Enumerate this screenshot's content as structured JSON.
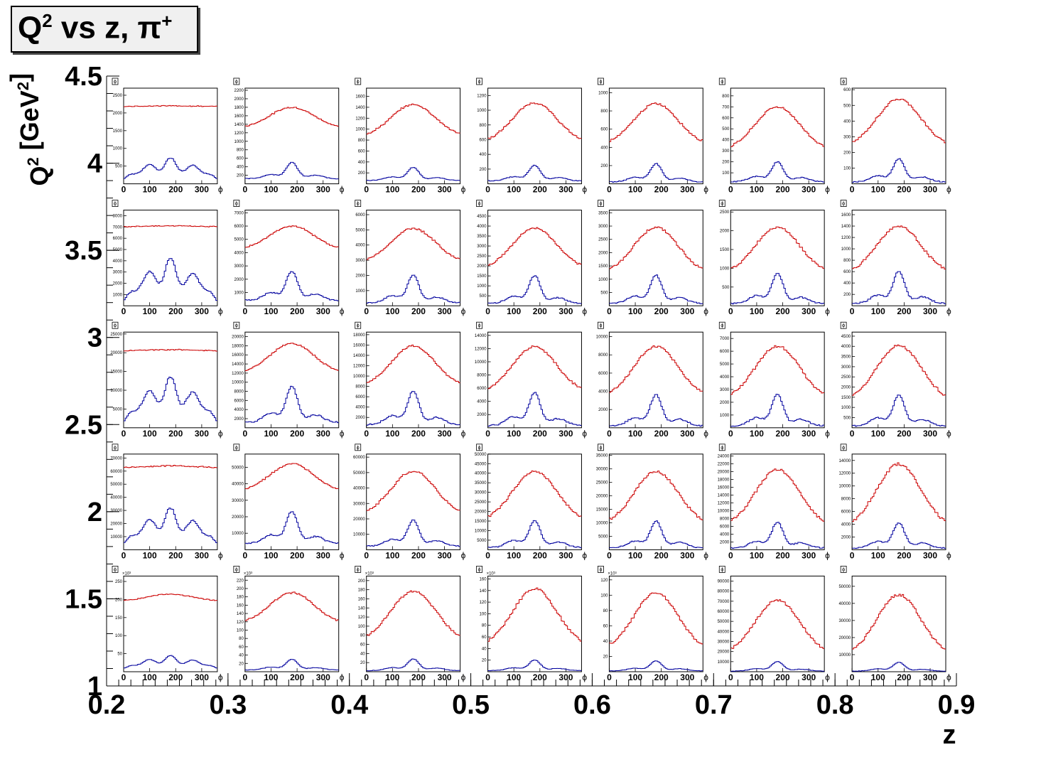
{
  "title": {
    "q": "Q",
    "qexp": "2",
    "vs": " vs z, ",
    "pi": "π",
    "piexp": "+"
  },
  "ylabel": {
    "q": "Q",
    "qexp": "2",
    "unit_open": " [GeV",
    "unit_exp": "2",
    "unit_close": "]"
  },
  "xlabel": "z",
  "outer_xticks": [
    "0.2",
    "0.3",
    "0.4",
    "0.5",
    "0.6",
    "0.7",
    "0.8",
    "0.9"
  ],
  "outer_yticks": [
    "4.5",
    "4",
    "3.5",
    "3",
    "2.5",
    "2",
    "1.5",
    "1"
  ],
  "panel_xticks": [
    "0",
    "100",
    "200",
    "300"
  ],
  "panel_xlabel": "ϕ",
  "panel_tag": "ϕ",
  "colors": {
    "upper": "#cc0000",
    "lower": "#00009e"
  },
  "chart_data": {
    "type": "line",
    "description_x": "ϕ (0–360) per panel; outer grid z bins × Q² bins",
    "z_bins": [
      0.2,
      0.3,
      0.4,
      0.5,
      0.6,
      0.7,
      0.8,
      0.9
    ],
    "q2_bins": [
      4.5,
      4,
      3.5,
      3,
      2.5,
      2,
      1.5,
      1
    ],
    "rows": [
      {
        "q2_range": "4–4.5",
        "panels": [
          {
            "yticks": [
              "500",
              "1000",
              "1500",
              "2000",
              "2500"
            ],
            "ymax": 2700,
            "upper": {
              "min": 2150,
              "max": 2200,
              "flat": true
            },
            "lower": {
              "min": 150,
              "max": 650,
              "peak": "modulated"
            }
          },
          {
            "yticks": [
              "200",
              "400",
              "600",
              "800",
              "1000",
              "1200",
              "1400",
              "1600",
              "1800",
              "2000",
              "2200"
            ],
            "ymax": 2250,
            "upper": {
              "min": 1300,
              "max": 1800
            },
            "lower": {
              "min": 100,
              "max": 500
            }
          },
          {
            "yticks": [
              "200",
              "400",
              "600",
              "800",
              "1000",
              "1200",
              "1400",
              "1600"
            ],
            "ymax": 1750,
            "upper": {
              "min": 850,
              "max": 1450
            },
            "lower": {
              "min": 50,
              "max": 300
            }
          },
          {
            "yticks": [
              "200",
              "400",
              "600",
              "800",
              "1000",
              "1200"
            ],
            "ymax": 1300,
            "upper": {
              "min": 550,
              "max": 1100
            },
            "lower": {
              "min": 30,
              "max": 250
            }
          },
          {
            "yticks": [
              "200",
              "400",
              "600",
              "800",
              "1000"
            ],
            "ymax": 1050,
            "upper": {
              "min": 420,
              "max": 880
            },
            "lower": {
              "min": 10,
              "max": 220
            }
          },
          {
            "yticks": [
              "100",
              "200",
              "300",
              "400",
              "500",
              "600",
              "700",
              "800"
            ],
            "ymax": 870,
            "upper": {
              "min": 300,
              "max": 700
            },
            "lower": {
              "min": 10,
              "max": 200
            }
          },
          {
            "yticks": [
              "100",
              "200",
              "300",
              "400",
              "500",
              "600"
            ],
            "ymax": 610,
            "upper": {
              "min": 230,
              "max": 540
            },
            "lower": {
              "min": 5,
              "max": 160
            }
          }
        ]
      },
      {
        "q2_range": "3.5–4",
        "panels": [
          {
            "yticks": [
              "1000",
              "2000",
              "3000",
              "4000",
              "5000",
              "6000",
              "7000",
              "8000"
            ],
            "ymax": 8500,
            "upper": {
              "min": 6900,
              "max": 7100,
              "flat": true
            },
            "lower": {
              "min": 500,
              "max": 3700,
              "peak": "modulated"
            }
          },
          {
            "yticks": [
              "1000",
              "2000",
              "3000",
              "4000",
              "5000",
              "6000",
              "7000"
            ],
            "ymax": 7200,
            "upper": {
              "min": 4200,
              "max": 6000
            },
            "lower": {
              "min": 300,
              "max": 2600
            }
          },
          {
            "yticks": [
              "1000",
              "2000",
              "3000",
              "4000",
              "5000",
              "6000"
            ],
            "ymax": 6300,
            "upper": {
              "min": 2800,
              "max": 5100
            },
            "lower": {
              "min": 100,
              "max": 2000
            }
          },
          {
            "yticks": [
              "500",
              "1000",
              "1500",
              "2000",
              "2500",
              "3000",
              "3500",
              "4000",
              "4500"
            ],
            "ymax": 4800,
            "upper": {
              "min": 1800,
              "max": 3900
            },
            "lower": {
              "min": 50,
              "max": 1500
            }
          },
          {
            "yticks": [
              "500",
              "1000",
              "1500",
              "2000",
              "2500",
              "3000",
              "3500"
            ],
            "ymax": 3600,
            "upper": {
              "min": 1200,
              "max": 2950
            },
            "lower": {
              "min": 30,
              "max": 1150
            }
          },
          {
            "yticks": [
              "500",
              "1000",
              "1500",
              "2000",
              "2500"
            ],
            "ymax": 2550,
            "upper": {
              "min": 850,
              "max": 2100
            },
            "lower": {
              "min": 20,
              "max": 850
            }
          },
          {
            "yticks": [
              "200",
              "400",
              "600",
              "800",
              "1000",
              "1200",
              "1400",
              "1600"
            ],
            "ymax": 1680,
            "upper": {
              "min": 550,
              "max": 1400
            },
            "lower": {
              "min": 10,
              "max": 600
            }
          }
        ]
      },
      {
        "q2_range": "3–3.5",
        "panels": [
          {
            "yticks": [
              "5000",
              "10000",
              "15000",
              "20000",
              "25000"
            ],
            "ymax": 25500,
            "upper": {
              "min": 20000,
              "max": 20800,
              "flat": true
            },
            "lower": {
              "min": 2000,
              "max": 12000,
              "peak": "modulated"
            }
          },
          {
            "yticks": [
              "2000",
              "4000",
              "6000",
              "8000",
              "10000",
              "12000",
              "14000",
              "16000",
              "18000",
              "20000"
            ],
            "ymax": 21000,
            "upper": {
              "min": 11800,
              "max": 18500
            },
            "lower": {
              "min": 800,
              "max": 9000
            }
          },
          {
            "yticks": [
              "2000",
              "4000",
              "6000",
              "8000",
              "10000",
              "12000",
              "14000",
              "16000",
              "18000"
            ],
            "ymax": 18500,
            "upper": {
              "min": 7800,
              "max": 15800
            },
            "lower": {
              "min": 300,
              "max": 7000
            }
          },
          {
            "yticks": [
              "2000",
              "4000",
              "6000",
              "8000",
              "10000",
              "12000",
              "14000"
            ],
            "ymax": 14500,
            "upper": {
              "min": 5200,
              "max": 12300
            },
            "lower": {
              "min": 100,
              "max": 5300
            }
          },
          {
            "yticks": [
              "2000",
              "4000",
              "6000",
              "8000",
              "10000"
            ],
            "ymax": 10500,
            "upper": {
              "min": 3300,
              "max": 8900
            },
            "lower": {
              "min": 50,
              "max": 3600
            }
          },
          {
            "yticks": [
              "1000",
              "2000",
              "3000",
              "4000",
              "5000",
              "6000",
              "7000"
            ],
            "ymax": 7500,
            "upper": {
              "min": 2200,
              "max": 6400
            },
            "lower": {
              "min": 20,
              "max": 2600
            }
          },
          {
            "yticks": [
              "500",
              "1000",
              "1500",
              "2000",
              "2500",
              "3000",
              "3500",
              "4000",
              "4500"
            ],
            "ymax": 4700,
            "upper": {
              "min": 1300,
              "max": 4050
            },
            "lower": {
              "min": 10,
              "max": 1600
            }
          }
        ]
      },
      {
        "q2_range": "2.5–3",
        "panels": [
          {
            "yticks": [
              "10000",
              "20000",
              "30000",
              "40000",
              "50000",
              "60000",
              "70000"
            ],
            "ymax": 73000,
            "upper": {
              "min": 60000,
              "max": 64000,
              "flat": true
            },
            "lower": {
              "min": 5000,
              "max": 28000,
              "peak": "modulated"
            }
          },
          {
            "yticks": [
              "10000",
              "20000",
              "30000",
              "40000",
              "50000"
            ],
            "ymax": 58000,
            "upper": {
              "min": 35000,
              "max": 52000
            },
            "lower": {
              "min": 3000,
              "max": 23000
            }
          },
          {
            "yticks": [
              "10000",
              "20000",
              "30000",
              "40000",
              "50000",
              "60000"
            ],
            "ymax": 62000,
            "upper": {
              "min": 22000,
              "max": 51000
            },
            "lower": {
              "min": 1500,
              "max": 19000
            }
          },
          {
            "yticks": [
              "5000",
              "10000",
              "15000",
              "20000",
              "25000",
              "30000",
              "35000",
              "40000",
              "45000",
              "50000"
            ],
            "ymax": 50000,
            "upper": {
              "min": 14500,
              "max": 41000
            },
            "lower": {
              "min": 500,
              "max": 15000
            }
          },
          {
            "yticks": [
              "5000",
              "10000",
              "15000",
              "20000",
              "25000",
              "30000",
              "35000"
            ],
            "ymax": 35500,
            "upper": {
              "min": 9000,
              "max": 29000
            },
            "lower": {
              "min": 200,
              "max": 10500
            }
          },
          {
            "yticks": [
              "2000",
              "4000",
              "6000",
              "8000",
              "10000",
              "12000",
              "14000",
              "16000",
              "18000",
              "20000",
              "22000",
              "24000"
            ],
            "ymax": 24500,
            "upper": {
              "min": 5800,
              "max": 20500
            },
            "lower": {
              "min": 100,
              "max": 7000
            }
          },
          {
            "yticks": [
              "2000",
              "4000",
              "6000",
              "8000",
              "10000",
              "12000",
              "14000"
            ],
            "ymax": 15000,
            "upper": {
              "min": 3400,
              "max": 13400
            },
            "lower": {
              "min": 50,
              "max": 4200
            }
          }
        ]
      },
      {
        "q2_range": "1–1.5",
        "panels": [
          {
            "exp": "×10³",
            "yticks": [
              "50",
              "100",
              "150",
              "200",
              "250"
            ],
            "ymax": 265,
            "upper": {
              "min": 195,
              "max": 215
            },
            "lower": {
              "min": 10,
              "max": 40,
              "peak": "modulated"
            }
          },
          {
            "exp": "×10³",
            "yticks": [
              "20",
              "40",
              "60",
              "80",
              "100",
              "120",
              "140",
              "160",
              "180",
              "200",
              "220"
            ],
            "ymax": 230,
            "upper": {
              "min": 115,
              "max": 190
            },
            "lower": {
              "min": 3,
              "max": 30
            }
          },
          {
            "exp": "×10³",
            "yticks": [
              "20",
              "40",
              "60",
              "80",
              "100",
              "120",
              "140",
              "160",
              "180",
              "200"
            ],
            "ymax": 210,
            "upper": {
              "min": 68,
              "max": 177
            },
            "lower": {
              "min": 1,
              "max": 28
            }
          },
          {
            "exp": "×10³",
            "yticks": [
              "20",
              "40",
              "60",
              "80",
              "100",
              "120",
              "140",
              "160"
            ],
            "ymax": 165,
            "upper": {
              "min": 43,
              "max": 143
            },
            "lower": {
              "min": 1,
              "max": 20
            }
          },
          {
            "exp": "×10³",
            "yticks": [
              "20",
              "40",
              "60",
              "80",
              "100",
              "120"
            ],
            "ymax": 125,
            "upper": {
              "min": 27,
              "max": 103
            },
            "lower": {
              "min": 0.5,
              "max": 14
            }
          },
          {
            "yticks": [
              "10000",
              "20000",
              "30000",
              "40000",
              "50000",
              "60000",
              "70000",
              "80000",
              "90000"
            ],
            "ymax": 95000,
            "upper": {
              "min": 17000,
              "max": 71000
            },
            "lower": {
              "min": 100,
              "max": 10000
            }
          },
          {
            "yticks": [
              "10000",
              "20000",
              "30000",
              "40000",
              "50000"
            ],
            "ymax": 56000,
            "upper": {
              "min": 9000,
              "max": 45000
            },
            "lower": {
              "min": 50,
              "max": 5500
            }
          }
        ]
      }
    ]
  }
}
